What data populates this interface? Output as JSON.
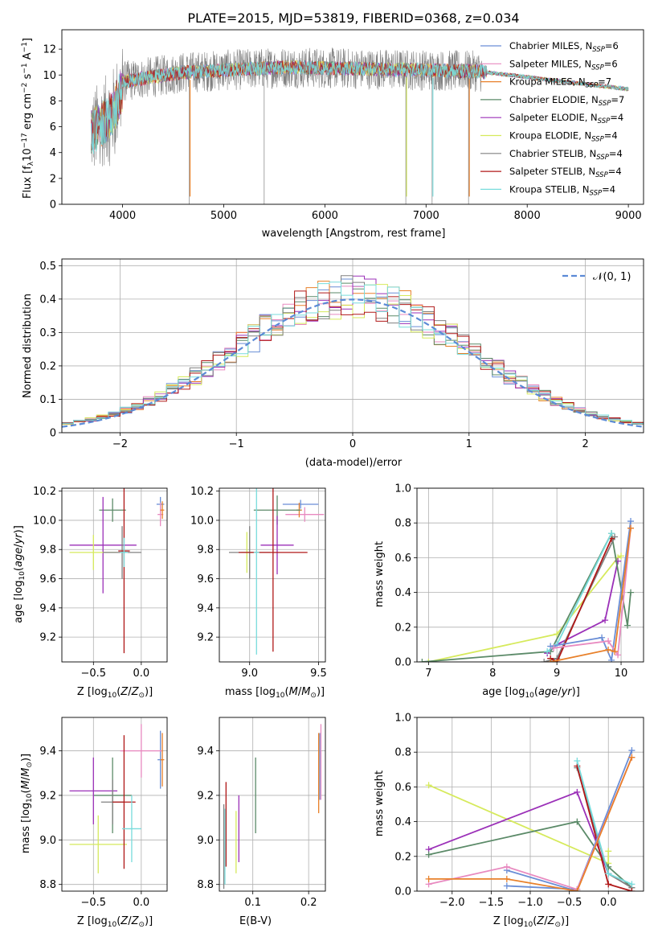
{
  "figure_title": "PLATE=2015, MJD=53819, FIBERID=0368, z=0.034",
  "colors": {
    "chabrier_miles": "#6a8ed6",
    "salpeter_miles": "#e88ac0",
    "kroupa_miles": "#e8802a",
    "chabrier_elodie": "#5b8a68",
    "salpeter_elodie": "#9b30b8",
    "kroupa_elodie": "#d6ea5c",
    "chabrier_stelib": "#808080",
    "salpeter_stelib": "#b01818",
    "kroupa_stelib": "#78dcdc",
    "normal_curve": "#5b8ad6",
    "grid": "#b0b0b0"
  },
  "chart_data": [
    {
      "id": "spectrum",
      "type": "line",
      "xlabel": "wavelength [Angstrom, rest frame]",
      "ylabel": "Flux [f_λ 10^-17 erg cm^-2 s^-1 A^-1]",
      "xlim": [
        3400,
        9150
      ],
      "ylim": [
        0,
        13.5
      ],
      "xticks": [
        4000,
        5000,
        6000,
        7000,
        8000,
        9000
      ],
      "yticks": [
        0,
        2,
        4,
        6,
        8,
        10,
        12
      ],
      "grid": false,
      "legend_position": "top-right",
      "data_range": [
        3690,
        7560
      ],
      "model_range": [
        3690,
        9000
      ],
      "absorption_lines": [
        4660,
        5400,
        6800,
        7060,
        7420
      ],
      "series": [
        {
          "key": "chabrier_miles",
          "name": "Chabrier MILES, N_SSP=6"
        },
        {
          "key": "salpeter_miles",
          "name": "Salpeter MILES, N_SSP=6"
        },
        {
          "key": "kroupa_miles",
          "name": "Kroupa MILES, N_SSP=7"
        },
        {
          "key": "chabrier_elodie",
          "name": "Chabrier ELODIE, N_SSP=7"
        },
        {
          "key": "salpeter_elodie",
          "name": "Salpeter ELODIE, N_SSP=4"
        },
        {
          "key": "kroupa_elodie",
          "name": "Kroupa ELODIE, N_SSP=4"
        },
        {
          "key": "chabrier_stelib",
          "name": "Chabrier STELIB, N_SSP=4"
        },
        {
          "key": "salpeter_stelib",
          "name": "Salpeter STELIB, N_SSP=4"
        },
        {
          "key": "kroupa_stelib",
          "name": "Kroupa STELIB, N_SSP=4"
        }
      ]
    },
    {
      "id": "residuals",
      "type": "histogram",
      "xlabel": "(data-model)/error",
      "ylabel": "Normed distribution",
      "xlim": [
        -2.5,
        2.5
      ],
      "ylim": [
        0,
        0.52
      ],
      "xticks": [
        -2,
        -1,
        0,
        1,
        2
      ],
      "yticks": [
        0.0,
        0.1,
        0.2,
        0.3,
        0.4,
        0.5
      ],
      "grid": true,
      "legend_position": "top-right",
      "legend_label": "𝒩(0, 1)",
      "bin_width": 0.1,
      "bin_start": -2.5,
      "series_keys": [
        "chabrier_miles",
        "salpeter_miles",
        "kroupa_miles",
        "chabrier_elodie",
        "salpeter_elodie",
        "kroupa_elodie",
        "chabrier_stelib",
        "salpeter_stelib",
        "kroupa_stelib"
      ]
    },
    {
      "id": "age_vs_Z",
      "type": "errorbar",
      "xlabel": "Z [log10(Z/Z⊙)]",
      "ylabel": "age [log10(age/yr)]",
      "xlim": [
        -0.83,
        0.27
      ],
      "ylim": [
        9.03,
        10.22
      ],
      "xticks": [
        -0.5,
        0.0
      ],
      "xticklabels": [
        "−0.5",
        "0.0"
      ],
      "yticks": [
        9.2,
        9.4,
        9.6,
        9.8,
        10.0,
        10.2
      ],
      "yticklabels": [
        "9.2",
        "9.4",
        "9.6",
        "9.8",
        "10.0",
        "10.2"
      ],
      "grid": true,
      "points": [
        {
          "key": "chabrier_miles",
          "x": 0.2,
          "xerr": 0.04,
          "y": 10.11,
          "yerr": 0.05
        },
        {
          "key": "salpeter_miles",
          "x": 0.2,
          "xerr": 0.03,
          "y": 10.04,
          "yerr": 0.08
        },
        {
          "key": "kroupa_miles",
          "x": 0.22,
          "xerr": 0.02,
          "y": 10.07,
          "yerr": 0.06
        },
        {
          "key": "chabrier_elodie",
          "x": -0.3,
          "xerr": 0.14,
          "y": 10.07,
          "yerr": 0.08
        },
        {
          "key": "salpeter_elodie",
          "x": -0.4,
          "xerr": 0.35,
          "y": 9.83,
          "yerr": 0.33
        },
        {
          "key": "kroupa_elodie",
          "x": -0.5,
          "xerr": 0.25,
          "y": 9.78,
          "yerr": 0.12
        },
        {
          "key": "chabrier_stelib",
          "x": -0.2,
          "xerr": 0.2,
          "y": 9.78,
          "yerr": 0.18
        },
        {
          "key": "salpeter_stelib",
          "x": -0.18,
          "xerr": 0.06,
          "y": 9.79,
          "yerr": 0.7
        },
        {
          "key": "kroupa_stelib",
          "x": -0.18,
          "xerr": 0.04,
          "y": 9.78,
          "yerr": 0.1
        }
      ]
    },
    {
      "id": "age_vs_mass",
      "type": "errorbar",
      "xlabel": "mass [log10(M/M⊙)]",
      "ylabel": "",
      "xlim": [
        8.78,
        9.55
      ],
      "ylim": [
        9.03,
        10.22
      ],
      "xticks": [
        9.0,
        9.5
      ],
      "xticklabels": [
        "9.0",
        "9.5"
      ],
      "yticks": [
        9.2,
        9.4,
        9.6,
        9.8,
        10.0,
        10.2
      ],
      "yticklabels": [
        "9.2",
        "9.4",
        "9.6",
        "9.8",
        "10.0",
        "10.2"
      ],
      "grid": true,
      "points": [
        {
          "key": "chabrier_miles",
          "x": 9.37,
          "xerr": 0.13,
          "y": 10.11,
          "yerr": 0.03
        },
        {
          "key": "salpeter_miles",
          "x": 9.4,
          "xerr": 0.14,
          "y": 10.04,
          "yerr": 0.05
        },
        {
          "key": "kroupa_miles",
          "x": 9.36,
          "xerr": 0.02,
          "y": 10.07,
          "yerr": 0.05
        },
        {
          "key": "chabrier_elodie",
          "x": 9.2,
          "xerr": 0.17,
          "y": 10.07,
          "yerr": 0.1
        },
        {
          "key": "salpeter_elodie",
          "x": 9.2,
          "xerr": 0.12,
          "y": 9.83,
          "yerr": 0.2
        },
        {
          "key": "kroupa_elodie",
          "x": 8.98,
          "xerr": 0.04,
          "y": 9.78,
          "yerr": 0.14
        },
        {
          "key": "chabrier_stelib",
          "x": 9.0,
          "xerr": 0.15,
          "y": 9.78,
          "yerr": 0.18
        },
        {
          "key": "salpeter_stelib",
          "x": 9.17,
          "xerr": 0.25,
          "y": 9.78,
          "yerr": 0.68
        },
        {
          "key": "kroupa_stelib",
          "x": 9.05,
          "xerr": 0.02,
          "y": 9.78,
          "yerr": 0.7
        }
      ]
    },
    {
      "id": "weight_vs_age",
      "type": "line",
      "xlabel": "age [log10(age/yr)]",
      "ylabel": "mass weight",
      "xlim": [
        6.82,
        10.35
      ],
      "ylim": [
        0,
        1.0
      ],
      "xticks": [
        7,
        8,
        9,
        10
      ],
      "xticklabels": [
        "7",
        "8",
        "9",
        "10"
      ],
      "yticks": [
        0.0,
        0.2,
        0.4,
        0.6,
        0.8,
        1.0
      ],
      "yticklabels": [
        "0.0",
        "0.2",
        "0.4",
        "0.6",
        "0.8",
        "1.0"
      ],
      "grid": true,
      "series": [
        {
          "key": "kroupa_elodie",
          "x": [
            7.0,
            9.0,
            9.95,
            10.0
          ],
          "y": [
            0.0,
            0.16,
            0.6,
            0.61
          ]
        },
        {
          "key": "salpeter_elodie",
          "x": [
            8.85,
            9.0,
            9.75,
            9.95
          ],
          "y": [
            0.05,
            0.1,
            0.24,
            0.58
          ]
        },
        {
          "key": "chabrier_elodie",
          "x": [
            6.9,
            8.9,
            9.85,
            10.1,
            10.15
          ],
          "y": [
            0.0,
            0.06,
            0.74,
            0.21,
            0.4
          ]
        },
        {
          "key": "chabrier_stelib",
          "x": [
            8.8,
            9.0,
            9.9
          ],
          "y": [
            0.0,
            0.02,
            0.72
          ]
        },
        {
          "key": "salpeter_stelib",
          "x": [
            8.9,
            9.0,
            9.85
          ],
          "y": [
            0.02,
            0.0,
            0.71
          ]
        },
        {
          "key": "kroupa_stelib",
          "x": [
            8.85,
            9.0,
            9.85
          ],
          "y": [
            0.06,
            0.1,
            0.74
          ]
        },
        {
          "key": "chabrier_miles",
          "x": [
            8.9,
            9.7,
            9.85,
            10.15
          ],
          "y": [
            0.09,
            0.14,
            0.01,
            0.81
          ]
        },
        {
          "key": "salpeter_miles",
          "x": [
            8.95,
            9.8,
            9.95,
            10.15
          ],
          "y": [
            0.08,
            0.12,
            0.04,
            0.77
          ]
        },
        {
          "key": "kroupa_miles",
          "x": [
            8.9,
            9.8,
            9.9,
            10.15
          ],
          "y": [
            0.0,
            0.07,
            0.06,
            0.77
          ]
        }
      ]
    },
    {
      "id": "mass_vs_Z",
      "type": "errorbar",
      "xlabel": "Z [log10(Z/Z⊙)]",
      "ylabel": "mass [log10(M/M⊙)]",
      "xlim": [
        -0.83,
        0.27
      ],
      "ylim": [
        8.77,
        9.55
      ],
      "xticks": [
        -0.5,
        0.0
      ],
      "xticklabels": [
        "−0.5",
        "0.0"
      ],
      "yticks": [
        8.8,
        9.0,
        9.2,
        9.4
      ],
      "yticklabels": [
        "8.8",
        "9.0",
        "9.2",
        "9.4"
      ],
      "grid": true,
      "points": [
        {
          "key": "chabrier_miles",
          "x": 0.2,
          "xerr": 0.03,
          "y": 9.36,
          "yerr": 0.13
        },
        {
          "key": "salpeter_miles",
          "x": 0.0,
          "xerr": 0.22,
          "y": 9.4,
          "yerr": 0.12
        },
        {
          "key": "kroupa_miles",
          "x": 0.22,
          "xerr": 0.02,
          "y": 9.36,
          "yerr": 0.12
        },
        {
          "key": "chabrier_elodie",
          "x": -0.3,
          "xerr": 0.2,
          "y": 9.2,
          "yerr": 0.17
        },
        {
          "key": "salpeter_elodie",
          "x": -0.5,
          "xerr": 0.25,
          "y": 9.22,
          "yerr": 0.15
        },
        {
          "key": "kroupa_elodie",
          "x": -0.45,
          "xerr": 0.3,
          "y": 8.98,
          "yerr": 0.13
        },
        {
          "key": "chabrier_stelib",
          "x": -0.3,
          "xerr": 0.12,
          "y": 9.17,
          "yerr": 0.1
        },
        {
          "key": "salpeter_stelib",
          "x": -0.18,
          "xerr": 0.12,
          "y": 9.17,
          "yerr": 0.3
        },
        {
          "key": "kroupa_stelib",
          "x": -0.1,
          "xerr": 0.1,
          "y": 9.05,
          "yerr": 0.15
        }
      ]
    },
    {
      "id": "mass_vs_ebv",
      "type": "errorbar",
      "xlabel": "E(B-V)",
      "ylabel": "",
      "xlim": [
        0.04,
        0.23
      ],
      "ylim": [
        8.77,
        9.55
      ],
      "xticks": [
        0.1,
        0.2
      ],
      "xticklabels": [
        "0.1",
        "0.2"
      ],
      "yticks": [
        8.8,
        9.0,
        9.2,
        9.4
      ],
      "yticklabels": [
        "8.8",
        "9.0",
        "9.2",
        "9.4"
      ],
      "grid": true,
      "points": [
        {
          "key": "chabrier_miles",
          "x": 0.22,
          "xerr": 0.0,
          "y": 9.33,
          "yerr": 0.15
        },
        {
          "key": "salpeter_miles",
          "x": 0.222,
          "xerr": 0.0,
          "y": 9.35,
          "yerr": 0.17
        },
        {
          "key": "kroupa_miles",
          "x": 0.218,
          "xerr": 0.0,
          "y": 9.3,
          "yerr": 0.18
        },
        {
          "key": "chabrier_elodie",
          "x": 0.105,
          "xerr": 0.0,
          "y": 9.2,
          "yerr": 0.17
        },
        {
          "key": "salpeter_elodie",
          "x": 0.075,
          "xerr": 0.0,
          "y": 9.05,
          "yerr": 0.15
        },
        {
          "key": "kroupa_elodie",
          "x": 0.07,
          "xerr": 0.0,
          "y": 8.99,
          "yerr": 0.14
        },
        {
          "key": "chabrier_stelib",
          "x": 0.048,
          "xerr": 0.0,
          "y": 8.97,
          "yerr": 0.19
        },
        {
          "key": "salpeter_stelib",
          "x": 0.052,
          "xerr": 0.0,
          "y": 9.07,
          "yerr": 0.19
        },
        {
          "key": "kroupa_stelib",
          "x": 0.05,
          "xerr": 0.0,
          "y": 8.97,
          "yerr": 0.17
        }
      ]
    },
    {
      "id": "weight_vs_Z",
      "type": "line",
      "xlabel": "Z [log10(Z/Z⊙)]",
      "ylabel": "mass weight",
      "xlim": [
        -2.45,
        0.45
      ],
      "ylim": [
        0,
        1.0
      ],
      "xticks": [
        -2.0,
        -1.5,
        -1.0,
        -0.5,
        0.0
      ],
      "xticklabels": [
        "−2.0",
        "−1.5",
        "−1.0",
        "−0.5",
        "0.0"
      ],
      "yticks": [
        0.0,
        0.2,
        0.4,
        0.6,
        0.8,
        1.0
      ],
      "yticklabels": [
        "0.0",
        "0.2",
        "0.4",
        "0.6",
        "0.8",
        "1.0"
      ],
      "grid": true,
      "series": [
        {
          "key": "kroupa_elodie",
          "x": [
            -2.3,
            0.0,
            0.0
          ],
          "y": [
            0.61,
            0.16,
            0.23
          ]
        },
        {
          "key": "salpeter_elodie",
          "x": [
            -2.3,
            -0.4,
            0.0
          ],
          "y": [
            0.24,
            0.57,
            0.1
          ]
        },
        {
          "key": "chabrier_elodie",
          "x": [
            -2.3,
            -0.4,
            0.0,
            0.3
          ],
          "y": [
            0.21,
            0.4,
            0.14,
            0.02
          ]
        },
        {
          "key": "chabrier_stelib",
          "x": [
            -0.4,
            0.0,
            0.3
          ],
          "y": [
            0.71,
            0.1,
            0.02
          ]
        },
        {
          "key": "salpeter_stelib",
          "x": [
            -0.4,
            0.0,
            0.3
          ],
          "y": [
            0.72,
            0.04,
            0.0
          ]
        },
        {
          "key": "kroupa_stelib",
          "x": [
            -0.4,
            0.0,
            0.3
          ],
          "y": [
            0.75,
            0.1,
            0.04
          ]
        },
        {
          "key": "chabrier_miles",
          "x": [
            -1.3,
            -0.4,
            0.3
          ],
          "y": [
            0.03,
            0.01,
            0.81
          ]
        },
        {
          "key": "chabrier_miles",
          "x": [
            -1.3,
            -0.4
          ],
          "y": [
            0.12,
            0.0
          ]
        },
        {
          "key": "salpeter_miles",
          "x": [
            -2.3,
            -1.3,
            -0.4,
            0.3
          ],
          "y": [
            0.04,
            0.14,
            0.01,
            0.77
          ]
        },
        {
          "key": "kroupa_miles",
          "x": [
            -2.3,
            -1.3,
            -0.4,
            0.3
          ],
          "y": [
            0.07,
            0.07,
            0.0,
            0.77
          ]
        }
      ]
    }
  ]
}
